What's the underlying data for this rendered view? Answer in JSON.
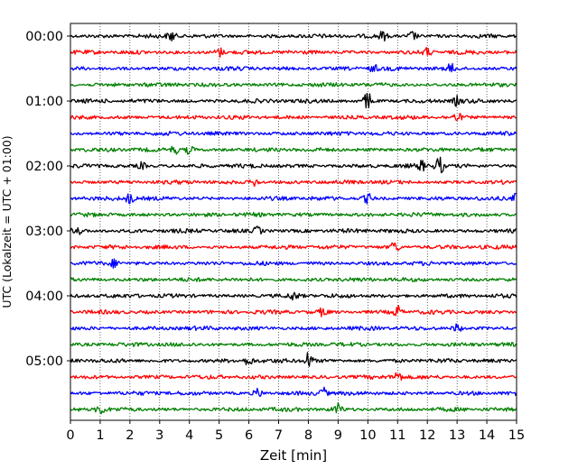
{
  "chart_data": {
    "type": "line",
    "title": "",
    "xlabel": "Zeit  [min]",
    "ylabel": "UTC (Lokalzeit = UTC + 01:00)",
    "xlim": [
      0,
      15
    ],
    "x_ticks": [
      "0",
      "1",
      "2",
      "3",
      "4",
      "5",
      "6",
      "7",
      "8",
      "9",
      "10",
      "11",
      "12",
      "13",
      "14",
      "15"
    ],
    "y_tick_labels": [
      "00:00",
      "01:00",
      "02:00",
      "03:00",
      "04:00",
      "05:00"
    ],
    "y_tick_label_rows": [
      0,
      4,
      8,
      12,
      16,
      20
    ],
    "grid": "x-dotted",
    "row_interval_min": 15,
    "row_colors": [
      "#000000",
      "#ff0000",
      "#0000ff",
      "#008000"
    ],
    "rows": [
      {
        "time": "00:00",
        "color": "#000000"
      },
      {
        "time": "00:15",
        "color": "#ff0000"
      },
      {
        "time": "00:30",
        "color": "#0000ff"
      },
      {
        "time": "00:45",
        "color": "#008000"
      },
      {
        "time": "01:00",
        "color": "#000000"
      },
      {
        "time": "01:15",
        "color": "#ff0000"
      },
      {
        "time": "01:30",
        "color": "#0000ff"
      },
      {
        "time": "01:45",
        "color": "#008000"
      },
      {
        "time": "02:00",
        "color": "#000000"
      },
      {
        "time": "02:15",
        "color": "#ff0000"
      },
      {
        "time": "02:30",
        "color": "#0000ff"
      },
      {
        "time": "02:45",
        "color": "#008000"
      },
      {
        "time": "03:00",
        "color": "#000000"
      },
      {
        "time": "03:15",
        "color": "#ff0000"
      },
      {
        "time": "03:30",
        "color": "#0000ff"
      },
      {
        "time": "03:45",
        "color": "#008000"
      },
      {
        "time": "04:00",
        "color": "#000000"
      },
      {
        "time": "04:15",
        "color": "#ff0000"
      },
      {
        "time": "04:30",
        "color": "#0000ff"
      },
      {
        "time": "04:45",
        "color": "#008000"
      },
      {
        "time": "05:00",
        "color": "#000000"
      },
      {
        "time": "05:15",
        "color": "#ff0000"
      },
      {
        "time": "05:30",
        "color": "#0000ff"
      },
      {
        "time": "05:45",
        "color": "#008000"
      }
    ],
    "events": [
      {
        "row": 0,
        "x": 3.4,
        "amp": 1.0
      },
      {
        "row": 0,
        "x": 11.5,
        "amp": 0.9
      },
      {
        "row": 0,
        "x": 10.5,
        "amp": 0.8
      },
      {
        "row": 1,
        "x": 5.0,
        "amp": 0.9
      },
      {
        "row": 1,
        "x": 12.0,
        "amp": 0.7
      },
      {
        "row": 2,
        "x": 10.2,
        "amp": 0.7
      },
      {
        "row": 2,
        "x": 12.8,
        "amp": 0.8
      },
      {
        "row": 4,
        "x": 10.0,
        "amp": 1.8
      },
      {
        "row": 4,
        "x": 13.0,
        "amp": 0.8
      },
      {
        "row": 5,
        "x": 13.0,
        "amp": 0.7
      },
      {
        "row": 7,
        "x": 3.5,
        "amp": 0.8
      },
      {
        "row": 7,
        "x": 4.0,
        "amp": 0.8
      },
      {
        "row": 8,
        "x": 12.4,
        "amp": 1.8
      },
      {
        "row": 8,
        "x": 11.8,
        "amp": 0.9
      },
      {
        "row": 8,
        "x": 2.4,
        "amp": 0.6
      },
      {
        "row": 9,
        "x": 6.2,
        "amp": 0.7
      },
      {
        "row": 10,
        "x": 2.0,
        "amp": 1.0
      },
      {
        "row": 10,
        "x": 10.0,
        "amp": 0.9
      },
      {
        "row": 10,
        "x": 15.0,
        "amp": 0.9
      },
      {
        "row": 12,
        "x": 0.2,
        "amp": 0.9
      },
      {
        "row": 12,
        "x": 6.3,
        "amp": 0.8
      },
      {
        "row": 13,
        "x": 10.9,
        "amp": 1.2
      },
      {
        "row": 14,
        "x": 1.5,
        "amp": 0.8
      },
      {
        "row": 16,
        "x": 7.5,
        "amp": 0.7
      },
      {
        "row": 17,
        "x": 11.0,
        "amp": 1.1
      },
      {
        "row": 17,
        "x": 8.5,
        "amp": 0.8
      },
      {
        "row": 18,
        "x": 13.0,
        "amp": 0.8
      },
      {
        "row": 20,
        "x": 8.0,
        "amp": 1.6
      },
      {
        "row": 20,
        "x": 6.0,
        "amp": 0.9
      },
      {
        "row": 21,
        "x": 11.0,
        "amp": 1.2
      },
      {
        "row": 22,
        "x": 8.5,
        "amp": 1.0
      },
      {
        "row": 22,
        "x": 6.3,
        "amp": 0.8
      },
      {
        "row": 23,
        "x": 9.0,
        "amp": 1.1
      },
      {
        "row": 23,
        "x": 1.0,
        "amp": 0.9
      }
    ]
  }
}
